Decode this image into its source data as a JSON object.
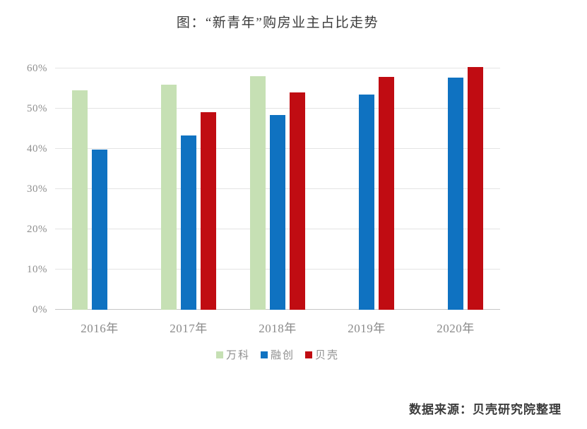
{
  "page": {
    "title": "图：“新青年”购房业主占比走势",
    "source": "数据来源：贝壳研究院整理"
  },
  "chart_data": {
    "type": "bar",
    "title": "图：“新青年”购房业主占比走势",
    "categories": [
      "2016年",
      "2017年",
      "2018年",
      "2019年",
      "2020年"
    ],
    "series": [
      {
        "key": "wanke",
        "name": "万科",
        "color": "#c6e0b4",
        "values": [
          54.5,
          55.9,
          58.0,
          null,
          null
        ]
      },
      {
        "key": "rongchuang",
        "name": "融创",
        "color": "#0f72c1",
        "values": [
          39.8,
          43.3,
          48.4,
          53.5,
          57.7
        ]
      },
      {
        "key": "beike",
        "name": "贝壳",
        "color": "#c00c12",
        "values": [
          null,
          49.2,
          54.1,
          57.9,
          60.3
        ]
      }
    ],
    "xlabel": "",
    "ylabel": "",
    "ylim": [
      0,
      60
    ],
    "yticks": [
      0,
      10,
      20,
      30,
      40,
      50,
      60
    ],
    "ytick_format": "percent",
    "grid": "horizontal",
    "legend_position": "bottom",
    "source": "数据来源：贝壳研究院整理"
  },
  "colors": {
    "background": "#ffffff",
    "grid": "#e4e4e4",
    "baseline": "#c6c6c6",
    "axis_text": "#8f8f8f",
    "title_text": "#3b3b3b",
    "source_text": "#3b3b3b"
  }
}
